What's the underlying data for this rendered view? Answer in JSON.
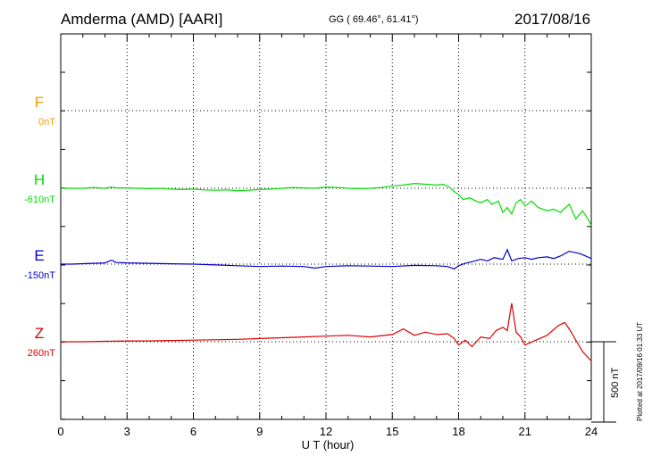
{
  "header": {
    "station": "Amderma (AMD)  [AARI]",
    "coords": "GG ( 69.46°,  61.41°)",
    "date": "2017/08/16"
  },
  "footer": {
    "plotted": "Plotted at 2017/09/16 01:33 UT"
  },
  "colors": {
    "F": "#f0a000",
    "H": "#00dd00",
    "E": "#0000cc",
    "Z": "#dd0000"
  },
  "chart_data": {
    "type": "line",
    "xlabel": "U T (hour)",
    "xlim": [
      0,
      24
    ],
    "xticks": [
      0,
      3,
      6,
      9,
      12,
      15,
      18,
      21,
      24
    ],
    "tick_labels": [
      "0",
      "3",
      "6",
      "9",
      "12",
      "15",
      "18",
      "21",
      "24"
    ],
    "scale_bar": {
      "label": "500 nT",
      "nT": 500
    },
    "series": [
      {
        "name": "F",
        "baseline_label": "0nT",
        "baseline_nT": 0,
        "values": []
      },
      {
        "name": "H",
        "baseline_label": "-610nT",
        "baseline_nT": -610,
        "x": [
          0,
          0.5,
          1,
          1.5,
          2,
          2.3,
          2.5,
          3,
          3.5,
          4,
          4.5,
          5,
          5.5,
          6,
          6.5,
          7,
          7.5,
          8,
          8.5,
          9,
          9.5,
          10,
          10.5,
          11,
          11.5,
          12,
          12.5,
          13,
          13.5,
          14,
          14.5,
          15,
          15.5,
          16,
          16.5,
          17,
          17.3,
          17.6,
          17.8,
          18,
          18.2,
          18.5,
          18.8,
          19,
          19.3,
          19.5,
          19.8,
          20,
          20.2,
          20.4,
          20.6,
          20.8,
          21,
          21.3,
          21.6,
          22,
          22.3,
          22.6,
          23,
          23.3,
          23.6,
          23.8,
          24
        ],
        "values": [
          0,
          0,
          0,
          5,
          0,
          8,
          3,
          2,
          0,
          -2,
          0,
          -5,
          -8,
          -5,
          -10,
          -12,
          -10,
          -15,
          -12,
          -8,
          -5,
          0,
          5,
          2,
          0,
          8,
          5,
          0,
          -2,
          0,
          5,
          15,
          20,
          30,
          25,
          20,
          25,
          5,
          -20,
          -40,
          -70,
          -60,
          -80,
          -90,
          -70,
          -100,
          -80,
          -150,
          -120,
          -160,
          -90,
          -70,
          -110,
          -80,
          -120,
          -140,
          -130,
          -150,
          -100,
          -190,
          -140,
          -180,
          -230
        ]
      },
      {
        "name": "E",
        "baseline_label": "-150nT",
        "baseline_nT": -150,
        "x": [
          0,
          0.5,
          1,
          1.5,
          2,
          2.3,
          2.5,
          3,
          4,
          5,
          6,
          7,
          8,
          9,
          10,
          11,
          11.5,
          12,
          13,
          14,
          15,
          16,
          17,
          17.5,
          17.8,
          18,
          18.3,
          18.6,
          19,
          19.3,
          19.6,
          20,
          20.2,
          20.4,
          20.7,
          21,
          21.3,
          21.6,
          22,
          22.3,
          22.6,
          23,
          23.5,
          24
        ],
        "values": [
          0,
          0,
          3,
          5,
          8,
          25,
          10,
          8,
          5,
          2,
          0,
          -5,
          -10,
          -15,
          -12,
          -15,
          -25,
          -15,
          -10,
          -12,
          -15,
          -8,
          -10,
          -15,
          -30,
          -10,
          5,
          15,
          30,
          20,
          40,
          30,
          90,
          20,
          35,
          40,
          30,
          40,
          45,
          35,
          50,
          80,
          65,
          35
        ]
      },
      {
        "name": "Z",
        "baseline_label": "260nT",
        "baseline_nT": 260,
        "x": [
          0,
          1,
          2,
          3,
          4,
          5,
          6,
          7,
          8,
          9,
          10,
          11,
          12,
          13,
          14,
          15,
          15.5,
          16,
          16.5,
          17,
          17.5,
          17.8,
          18,
          18.3,
          18.6,
          19,
          19.4,
          19.7,
          20,
          20.2,
          20.4,
          20.6,
          20.8,
          21,
          21.5,
          22,
          22.5,
          22.8,
          23,
          23.3,
          23.6,
          24
        ],
        "values": [
          0,
          0,
          3,
          5,
          5,
          8,
          10,
          12,
          15,
          20,
          25,
          30,
          35,
          40,
          30,
          45,
          80,
          40,
          60,
          45,
          50,
          20,
          -20,
          10,
          -30,
          30,
          20,
          70,
          90,
          70,
          240,
          60,
          30,
          -20,
          10,
          40,
          100,
          120,
          80,
          10,
          -60,
          -120
        ]
      }
    ]
  }
}
